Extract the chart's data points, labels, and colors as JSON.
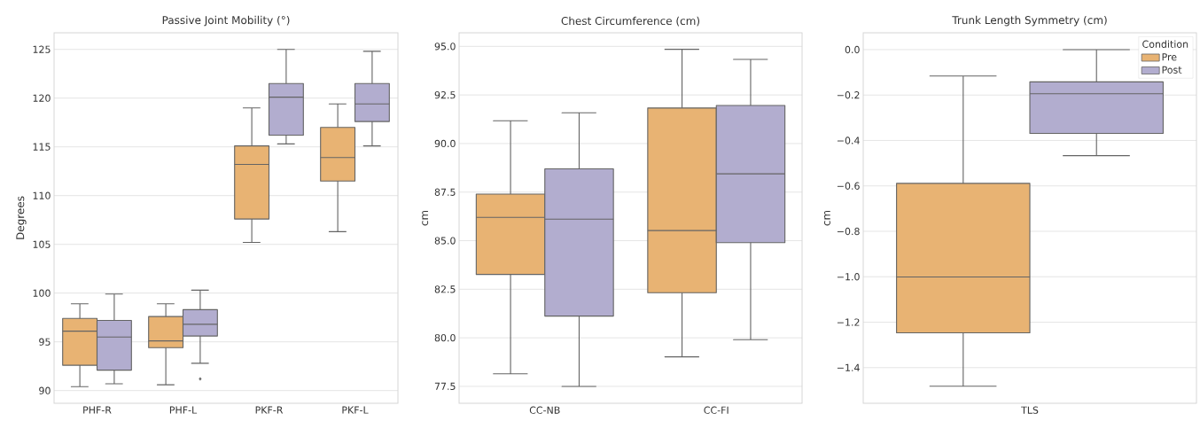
{
  "chart_data": [
    {
      "type": "box",
      "title": "Passive Joint Mobility (°)",
      "ylabel": "Degrees",
      "categories": [
        "PHF-R",
        "PHF-L",
        "PKF-R",
        "PKF-L"
      ],
      "series": [
        {
          "color": "#e8b373",
          "boxes": [
            {
              "low": 90.4,
              "q1": 92.6,
              "median": 96.1,
              "q3": 97.4,
              "high": 98.9
            },
            {
              "low": 90.6,
              "q1": 94.4,
              "median": 95.1,
              "q3": 97.6,
              "high": 98.9
            },
            {
              "low": 105.2,
              "q1": 107.6,
              "median": 113.2,
              "q3": 115.1,
              "high": 119.0
            },
            {
              "low": 106.3,
              "q1": 111.5,
              "median": 113.9,
              "q3": 117.0,
              "high": 119.4
            }
          ]
        },
        {
          "color": "#b2adcf",
          "boxes": [
            {
              "low": 90.7,
              "q1": 92.1,
              "median": 95.5,
              "q3": 97.2,
              "high": 99.9
            },
            {
              "low": 92.8,
              "q1": 95.6,
              "median": 96.8,
              "q3": 98.3,
              "high": 100.3,
              "outliers": [
                91.2
              ]
            },
            {
              "low": 115.3,
              "q1": 116.2,
              "median": 120.1,
              "q3": 121.5,
              "high": 125.0
            },
            {
              "low": 115.1,
              "q1": 117.6,
              "median": 119.4,
              "q3": 121.5,
              "high": 124.8
            }
          ]
        }
      ],
      "ylim": [
        88.7,
        126.7
      ],
      "yticks": [
        90,
        95,
        100,
        105,
        110,
        115,
        120,
        125
      ],
      "grid": "y"
    },
    {
      "type": "box",
      "title": "Chest Circumference (cm)",
      "ylabel": "cm",
      "categories": [
        "CC-NB",
        "CC-FI"
      ],
      "series": [
        {
          "color": "#e8b373",
          "boxes": [
            {
              "low": 78.15,
              "q1": 83.26,
              "median": 86.2,
              "q3": 87.4,
              "high": 91.17
            },
            {
              "low": 79.02,
              "q1": 82.32,
              "median": 85.52,
              "q3": 91.83,
              "high": 94.85
            }
          ]
        },
        {
          "color": "#b2adcf",
          "boxes": [
            {
              "low": 77.5,
              "q1": 81.12,
              "median": 86.11,
              "q3": 88.7,
              "high": 91.58
            },
            {
              "low": 79.9,
              "q1": 84.9,
              "median": 88.44,
              "q3": 91.96,
              "high": 94.33
            }
          ]
        }
      ],
      "ylim": [
        76.63,
        95.7
      ],
      "yticks": [
        {
          "value": 77.5,
          "label": "77.5"
        },
        {
          "value": 80,
          "label": "80.0"
        },
        {
          "value": 82.5,
          "label": "82.5"
        },
        {
          "value": 85,
          "label": "85.0"
        },
        {
          "value": 87.5,
          "label": "87.5"
        },
        {
          "value": 90,
          "label": "90.0"
        },
        {
          "value": 92.5,
          "label": "92.5"
        },
        {
          "value": 95,
          "label": "95.0"
        }
      ],
      "grid": "y"
    },
    {
      "type": "box",
      "title": "Trunk Length Symmetry (cm)",
      "ylabel": "cm",
      "categories": [
        "TLS"
      ],
      "legend_title": "Condition",
      "legend": "top right",
      "series": [
        {
          "name": "Pre",
          "color": "#e8b373",
          "boxes": [
            {
              "low": -1.482,
              "q1": -1.247,
              "median": -1.001,
              "q3": -0.589,
              "high": -0.116
            }
          ]
        },
        {
          "name": "Post",
          "color": "#b2adcf",
          "boxes": [
            {
              "low": -0.467,
              "q1": -0.369,
              "median": -0.194,
              "q3": -0.142,
              "high": 0.0
            }
          ]
        }
      ],
      "ylim": [
        -1.557,
        0.074
      ],
      "yticks": [
        {
          "value": -1.4,
          "label": "−1.4"
        },
        {
          "value": -1.2,
          "label": "−1.2"
        },
        {
          "value": -1.0,
          "label": "−1.0"
        },
        {
          "value": -0.8,
          "label": "−0.8"
        },
        {
          "value": -0.6,
          "label": "−0.6"
        },
        {
          "value": -0.4,
          "label": "−0.4"
        },
        {
          "value": -0.2,
          "label": "−0.2"
        },
        {
          "value": 0,
          "label": "0.0"
        }
      ],
      "grid": "y"
    }
  ]
}
